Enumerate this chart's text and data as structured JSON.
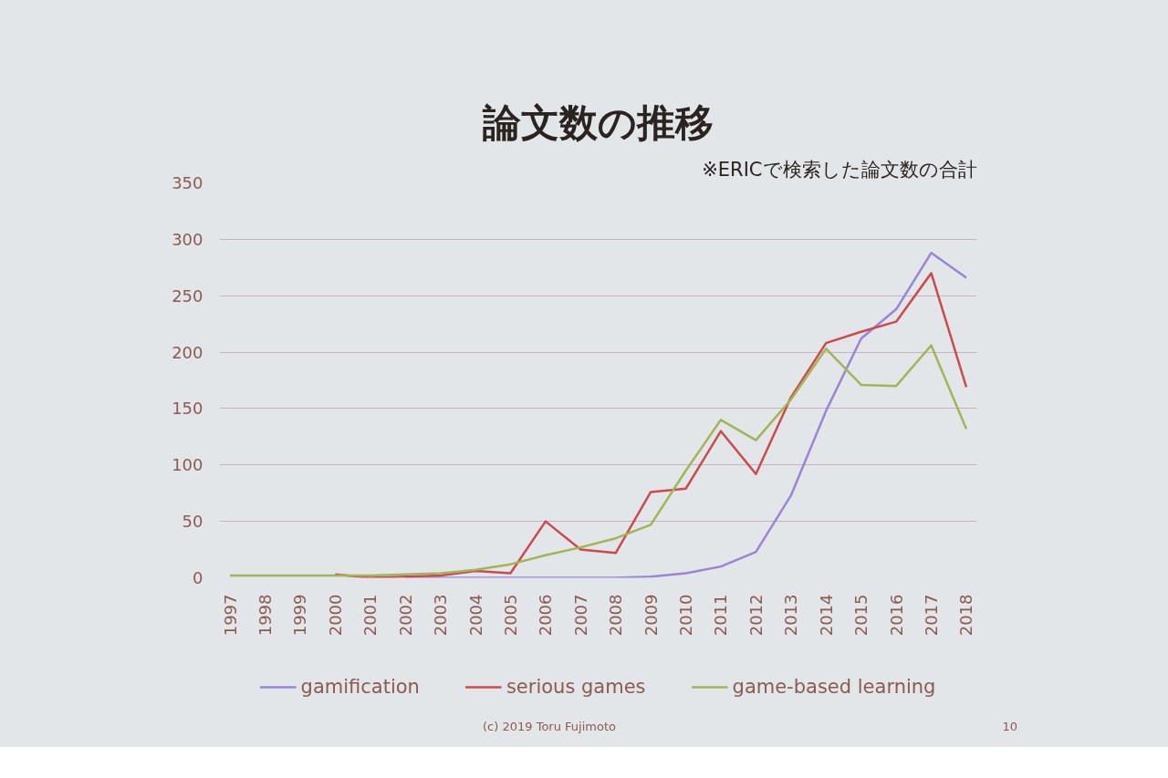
{
  "chart_data": {
    "type": "line",
    "title": "論文数の推移",
    "subtitle": "※ERICで検索した論文数の合計",
    "categories": [
      "1997",
      "1998",
      "1999",
      "2000",
      "2001",
      "2002",
      "2003",
      "2004",
      "2005",
      "2006",
      "2007",
      "2008",
      "2009",
      "2010",
      "2011",
      "2012",
      "2013",
      "2014",
      "2015",
      "2016",
      "2017",
      "2018"
    ],
    "series": [
      {
        "name": "gamification",
        "color": "#9a84d6",
        "values": [
          null,
          null,
          null,
          null,
          null,
          0,
          0,
          0,
          0,
          0,
          0,
          0,
          1,
          4,
          10,
          23,
          73,
          148,
          212,
          238,
          288,
          266
        ]
      },
      {
        "name": "serious games",
        "color": "#cc4a4f",
        "values": [
          null,
          null,
          null,
          3,
          0,
          1,
          2,
          6,
          4,
          50,
          25,
          22,
          76,
          79,
          130,
          92,
          160,
          208,
          218,
          227,
          270,
          169
        ]
      },
      {
        "name": "game-based learning",
        "color": "#a3b457",
        "values": [
          2,
          2,
          2,
          2,
          2,
          3,
          4,
          7,
          12,
          20,
          27,
          35,
          47,
          95,
          140,
          122,
          158,
          203,
          171,
          170,
          206,
          132
        ]
      }
    ],
    "ylim": [
      0,
      350
    ],
    "yticks": [
      0,
      50,
      100,
      150,
      200,
      250,
      300,
      350
    ],
    "grid": "y",
    "legend": "bottom",
    "marker": "none",
    "line_style": "solid",
    "annotations": [
      "(c) 2019 Toru Fujimoto",
      "10"
    ]
  }
}
